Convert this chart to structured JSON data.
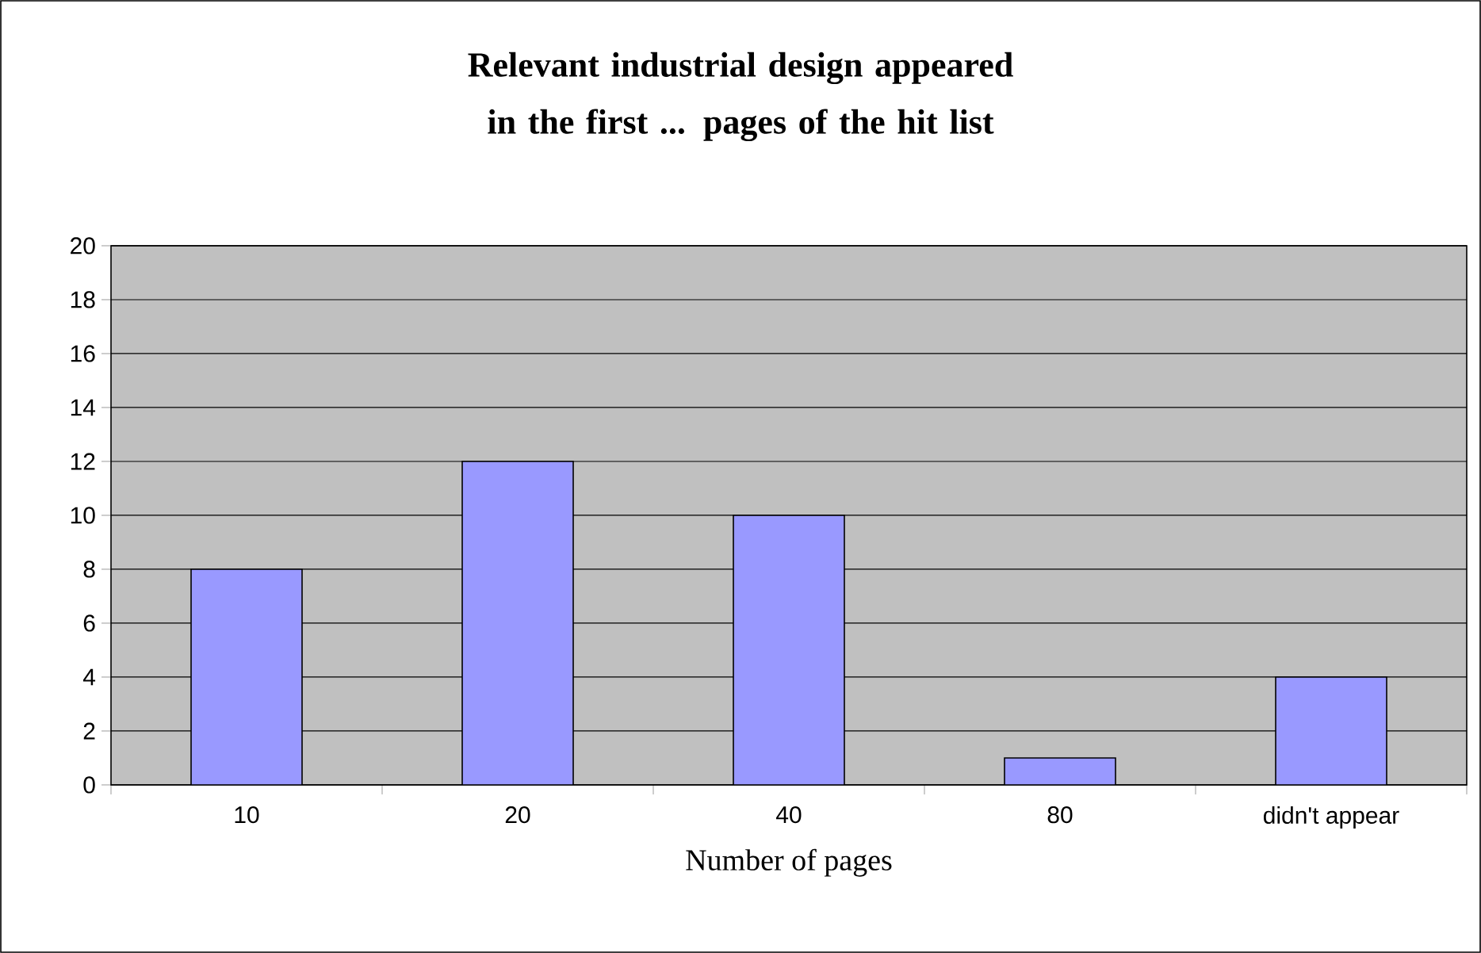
{
  "chart_data": {
    "type": "bar",
    "title": "Relevant industrial design appeared in the first ... pages of the hit list",
    "xlabel": "Number of pages",
    "categories": [
      "10",
      "20",
      "40",
      "80",
      "didn't appear"
    ],
    "values": [
      8,
      12,
      10,
      1,
      4
    ],
    "color": "#9999ff",
    "ylim": [
      0,
      20
    ],
    "yticks": [
      0,
      2,
      4,
      6,
      8,
      10,
      12,
      14,
      16,
      18,
      20
    ],
    "grid": "y"
  }
}
